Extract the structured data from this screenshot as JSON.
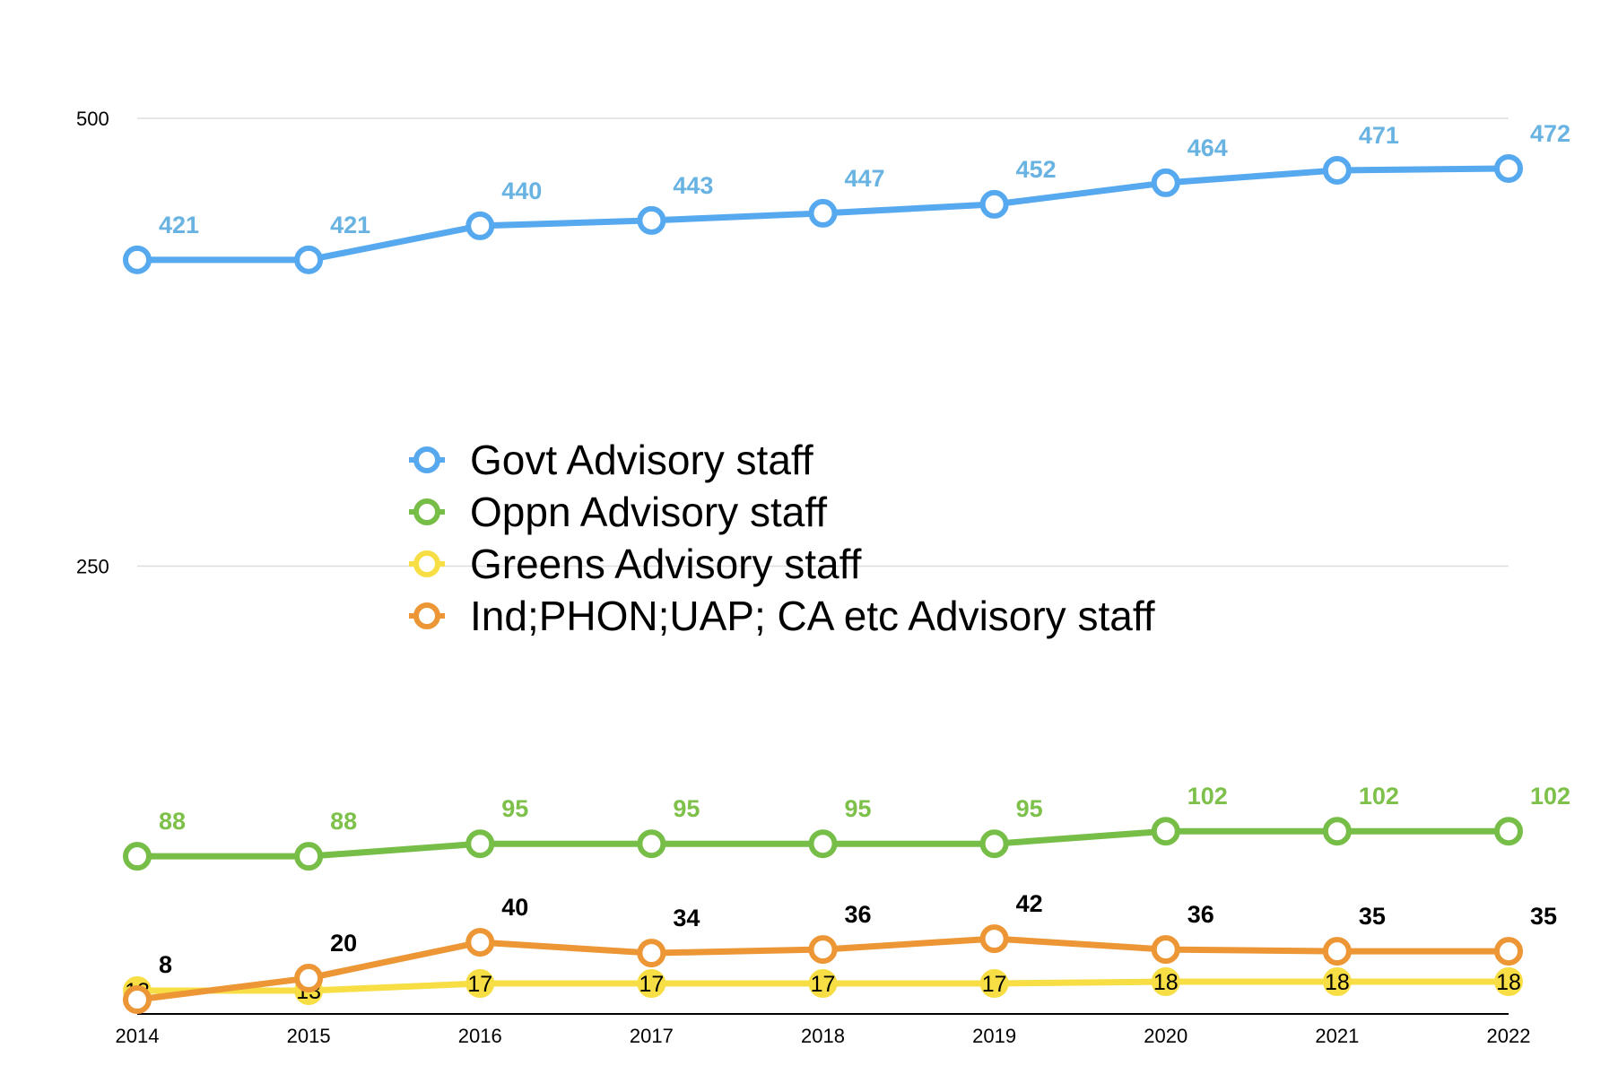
{
  "chart_data": {
    "type": "line",
    "title": "",
    "xlabel": "",
    "ylabel": "",
    "x": [
      "2014",
      "2015",
      "2016",
      "2017",
      "2018",
      "2019",
      "2020",
      "2021",
      "2022"
    ],
    "ylim": [
      0,
      500
    ],
    "yticks": [
      "250",
      "500"
    ],
    "grid": true,
    "legend_position": "center",
    "series": [
      {
        "name": "Govt Advisory staff",
        "color": "#56A9EF",
        "label_color": "#68B3E2",
        "label_style": "above",
        "values": [
          421,
          421,
          440,
          443,
          447,
          452,
          464,
          471,
          472
        ]
      },
      {
        "name": "Oppn Advisory staff",
        "color": "#77BE48",
        "label_color": "#7DC04A",
        "label_style": "above",
        "values": [
          88,
          88,
          95,
          95,
          95,
          95,
          102,
          102,
          102
        ]
      },
      {
        "name": "Greens Advisory staff",
        "color": "#F8DE45",
        "label_color": "#000000",
        "label_style": "inside",
        "values": [
          13,
          13,
          17,
          17,
          17,
          17,
          18,
          18,
          18
        ]
      },
      {
        "name": "Ind;PHON;UAP; CA etc Advisory staff",
        "color": "#EC9635",
        "label_color": "#000000",
        "label_style": "above",
        "values": [
          8,
          20,
          40,
          34,
          36,
          42,
          36,
          35,
          35
        ]
      }
    ]
  }
}
